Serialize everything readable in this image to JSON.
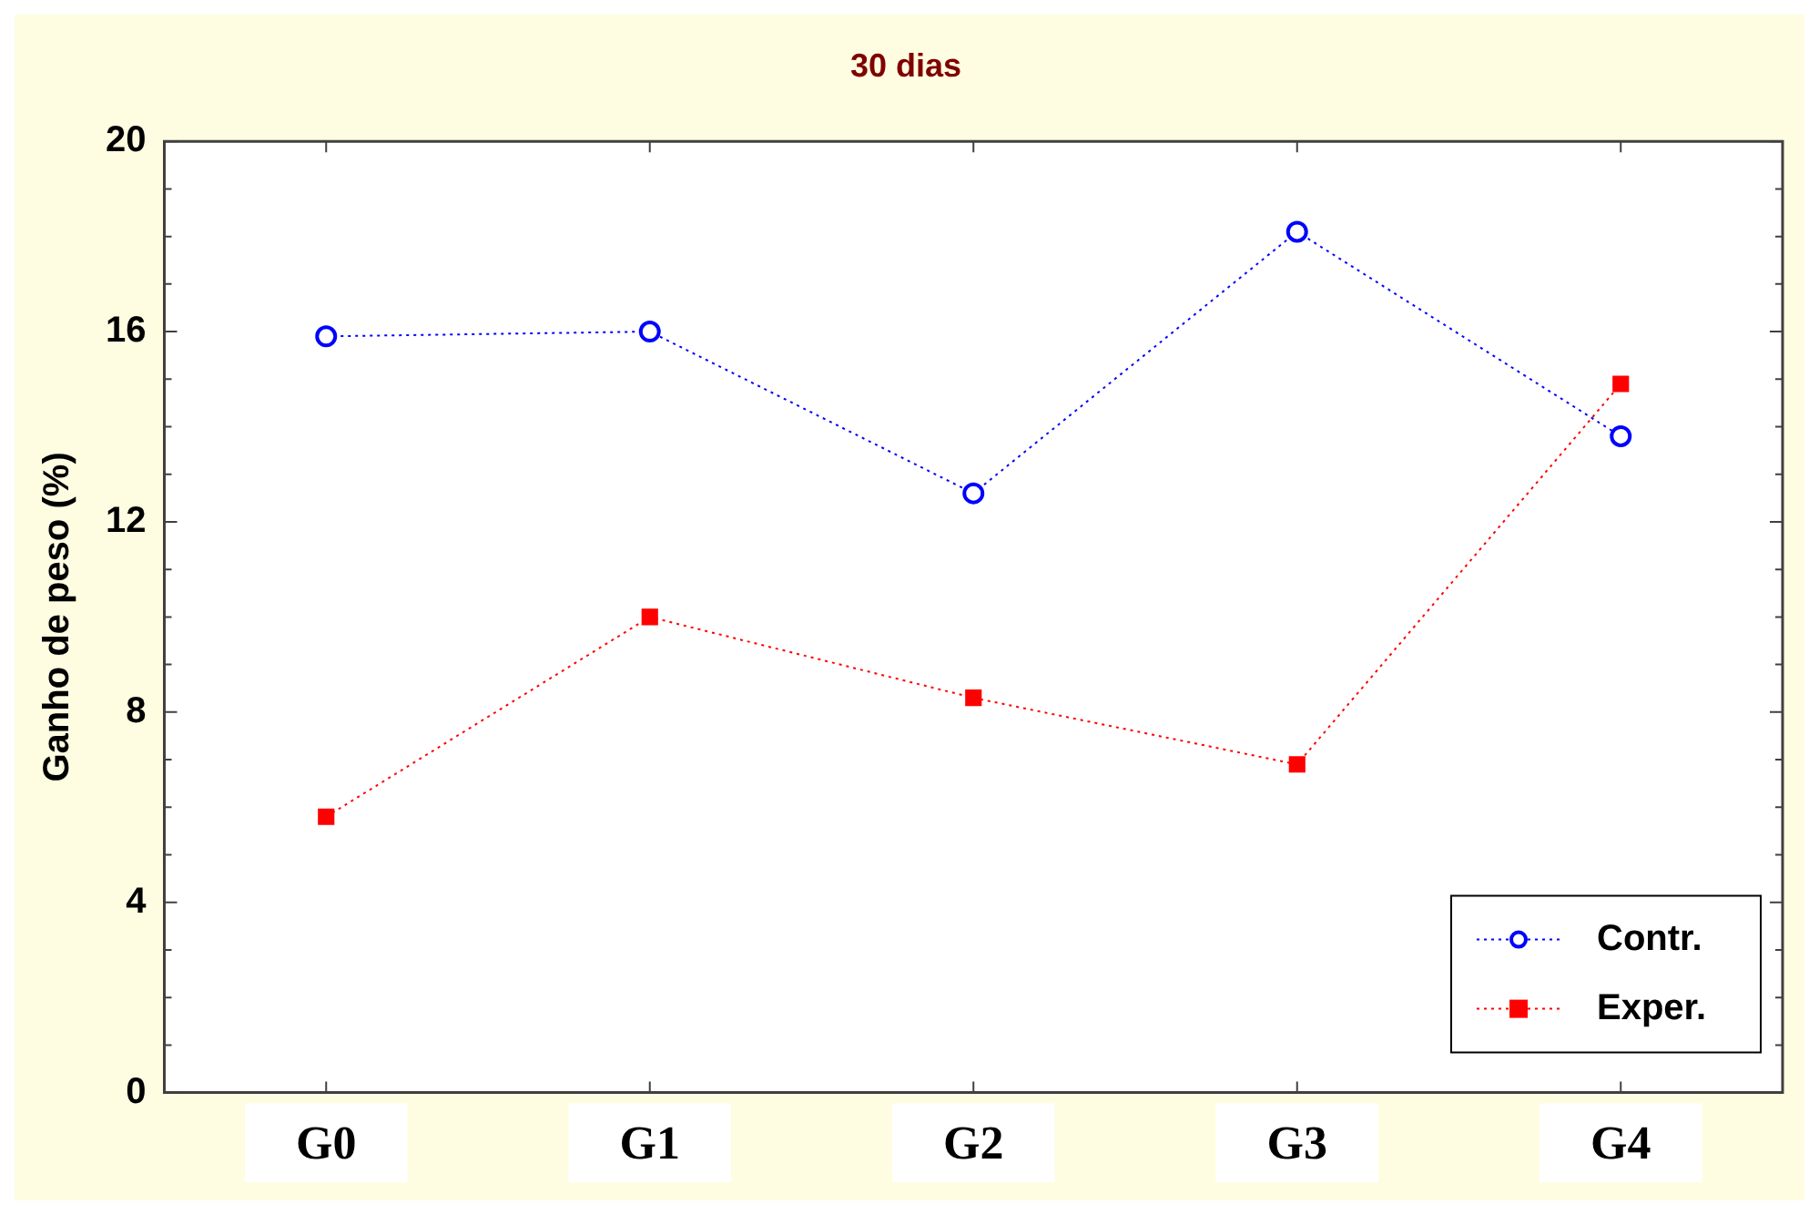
{
  "chart_data": {
    "type": "line",
    "title": "30 dias",
    "ylabel": "Ganho de peso (%)",
    "categories": [
      "G0",
      "G1",
      "G2",
      "G3",
      "G4"
    ],
    "series": [
      {
        "name": "Contr.",
        "color": "#0000ff",
        "marker": "circle",
        "values": [
          15.9,
          16.0,
          12.6,
          18.1,
          13.8
        ]
      },
      {
        "name": "Exper.",
        "color": "#ff0000",
        "marker": "square",
        "values": [
          5.8,
          10.0,
          8.3,
          6.9,
          14.9
        ]
      }
    ],
    "ylim": [
      0,
      20
    ],
    "yticks": [
      0,
      {
        "value": 1,
        "label": null
      },
      {
        "value": 2,
        "label": null
      },
      {
        "value": 3,
        "label": null
      },
      4,
      {
        "value": 5,
        "label": null
      },
      {
        "value": 6,
        "label": null
      },
      {
        "value": 7,
        "label": null
      },
      8,
      {
        "value": 9,
        "label": null
      },
      {
        "value": 10,
        "label": null
      },
      {
        "value": 11,
        "label": null
      },
      12,
      {
        "value": 13,
        "label": null
      },
      {
        "value": 14,
        "label": null
      },
      {
        "value": 15,
        "label": null
      },
      16,
      {
        "value": 17,
        "label": null
      },
      {
        "value": 18,
        "label": null
      },
      {
        "value": 19,
        "label": null
      },
      20
    ],
    "grid": false,
    "legend": "bottom right",
    "line_style": "dotted"
  }
}
